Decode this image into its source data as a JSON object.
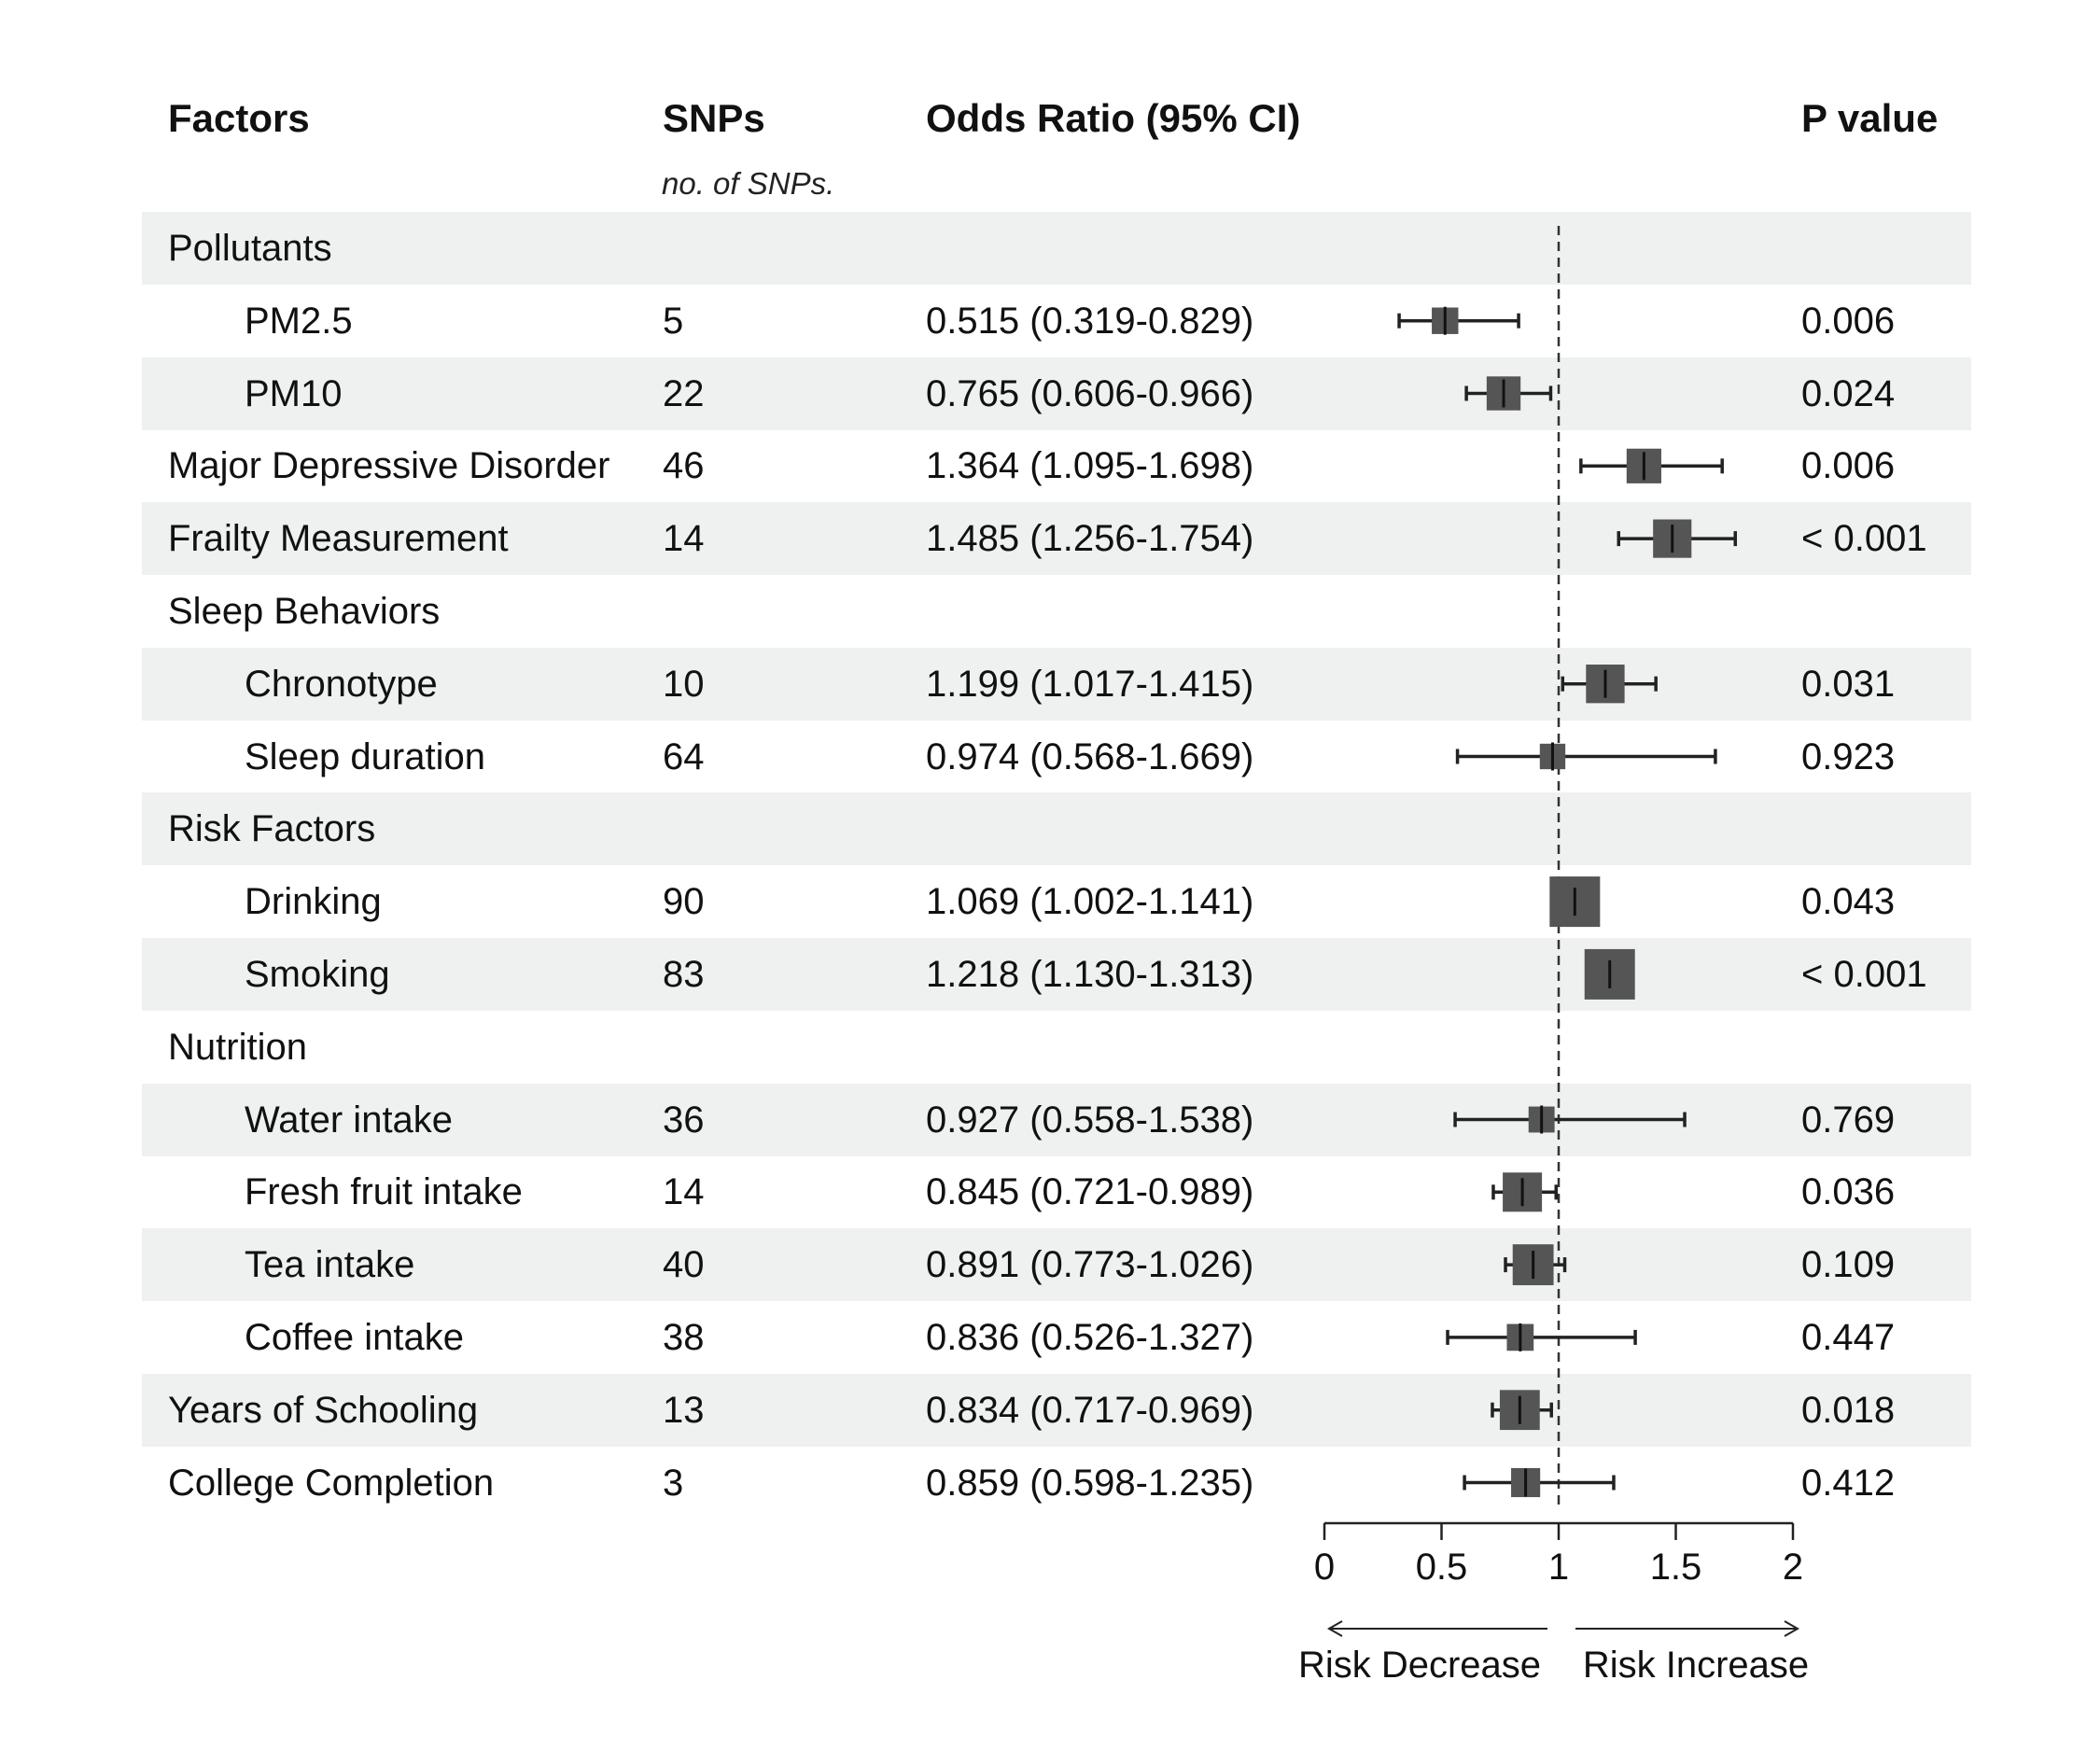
{
  "headers": {
    "factors": "Factors",
    "snps": "SNPs",
    "snps_sub": "no. of SNPs.",
    "odds_ratio": "Odds Ratio (95% CI)",
    "p_value": "P value"
  },
  "rows": [
    {
      "factor": "Pollutants",
      "snps": "",
      "or_text": "",
      "p": "",
      "group": true,
      "indent": false,
      "shaded": true
    },
    {
      "factor": "PM2.5",
      "snps": "5",
      "or_text": "0.515 (0.319-0.829)",
      "p": "0.006",
      "group": false,
      "indent": true,
      "shaded": false
    },
    {
      "factor": "PM10",
      "snps": "22",
      "or_text": "0.765 (0.606-0.966)",
      "p": "0.024",
      "group": false,
      "indent": true,
      "shaded": true
    },
    {
      "factor": "Major Depressive Disorder",
      "snps": "46",
      "or_text": "1.364 (1.095-1.698)",
      "p": "0.006",
      "group": false,
      "indent": false,
      "shaded": false
    },
    {
      "factor": "Frailty Measurement",
      "snps": "14",
      "or_text": "1.485 (1.256-1.754)",
      "p": "< 0.001",
      "group": false,
      "indent": false,
      "shaded": true
    },
    {
      "factor": "Sleep Behaviors",
      "snps": "",
      "or_text": "",
      "p": "",
      "group": true,
      "indent": false,
      "shaded": false
    },
    {
      "factor": "Chronotype",
      "snps": "10",
      "or_text": "1.199 (1.017-1.415)",
      "p": "0.031",
      "group": false,
      "indent": true,
      "shaded": true
    },
    {
      "factor": "Sleep duration",
      "snps": "64",
      "or_text": "0.974 (0.568-1.669)",
      "p": "0.923",
      "group": false,
      "indent": true,
      "shaded": false
    },
    {
      "factor": "Risk Factors",
      "snps": "",
      "or_text": "",
      "p": "",
      "group": true,
      "indent": false,
      "shaded": true
    },
    {
      "factor": "Drinking",
      "snps": "90",
      "or_text": "1.069 (1.002-1.141)",
      "p": "0.043",
      "group": false,
      "indent": true,
      "shaded": false
    },
    {
      "factor": "Smoking",
      "snps": "83",
      "or_text": "1.218 (1.130-1.313)",
      "p": "< 0.001",
      "group": false,
      "indent": true,
      "shaded": true
    },
    {
      "factor": "Nutrition",
      "snps": "",
      "or_text": "",
      "p": "",
      "group": true,
      "indent": false,
      "shaded": false
    },
    {
      "factor": "Water intake",
      "snps": "36",
      "or_text": "0.927 (0.558-1.538)",
      "p": "0.769",
      "group": false,
      "indent": true,
      "shaded": true
    },
    {
      "factor": "Fresh fruit intake",
      "snps": "14",
      "or_text": "0.845 (0.721-0.989)",
      "p": "0.036",
      "group": false,
      "indent": true,
      "shaded": false
    },
    {
      "factor": "Tea intake",
      "snps": "40",
      "or_text": "0.891 (0.773-1.026)",
      "p": "0.109",
      "group": false,
      "indent": true,
      "shaded": true
    },
    {
      "factor": "Coffee intake",
      "snps": "38",
      "or_text": "0.836 (0.526-1.327)",
      "p": "0.447",
      "group": false,
      "indent": true,
      "shaded": false
    },
    {
      "factor": "Years of Schooling",
      "snps": "13",
      "or_text": "0.834 (0.717-0.969)",
      "p": "0.018",
      "group": false,
      "indent": false,
      "shaded": true
    },
    {
      "factor": "College Completion",
      "snps": "3",
      "or_text": "0.859 (0.598-1.235)",
      "p": "0.412",
      "group": false,
      "indent": false,
      "shaded": false
    }
  ],
  "chart_data": {
    "type": "forest",
    "xlim": [
      0,
      2
    ],
    "x_ticks": [
      "0",
      "0.5",
      "1",
      "1.5",
      "2"
    ],
    "reference_line": 1,
    "arrow_left_label": "Risk Decrease",
    "arrow_right_label": "Risk Increase",
    "colors": {
      "box": "#555555",
      "line": "#222222",
      "shade": "#eff1f1"
    },
    "estimates": [
      {
        "label": "PM2.5",
        "or": 0.515,
        "lo": 0.319,
        "hi": 0.829,
        "snps": 5
      },
      {
        "label": "PM10",
        "or": 0.765,
        "lo": 0.606,
        "hi": 0.966,
        "snps": 22
      },
      {
        "label": "Major Depressive Disorder",
        "or": 1.364,
        "lo": 1.095,
        "hi": 1.698,
        "snps": 46
      },
      {
        "label": "Frailty Measurement",
        "or": 1.485,
        "lo": 1.256,
        "hi": 1.754,
        "snps": 14
      },
      {
        "label": "Chronotype",
        "or": 1.199,
        "lo": 1.017,
        "hi": 1.415,
        "snps": 10
      },
      {
        "label": "Sleep duration",
        "or": 0.974,
        "lo": 0.568,
        "hi": 1.669,
        "snps": 64
      },
      {
        "label": "Drinking",
        "or": 1.069,
        "lo": 1.002,
        "hi": 1.141,
        "snps": 90
      },
      {
        "label": "Smoking",
        "or": 1.218,
        "lo": 1.13,
        "hi": 1.313,
        "snps": 83
      },
      {
        "label": "Water intake",
        "or": 0.927,
        "lo": 0.558,
        "hi": 1.538,
        "snps": 36
      },
      {
        "label": "Fresh fruit intake",
        "or": 0.845,
        "lo": 0.721,
        "hi": 0.989,
        "snps": 14
      },
      {
        "label": "Tea intake",
        "or": 0.891,
        "lo": 0.773,
        "hi": 1.026,
        "snps": 40
      },
      {
        "label": "Coffee intake",
        "or": 0.836,
        "lo": 0.526,
        "hi": 1.327,
        "snps": 38
      },
      {
        "label": "Years of Schooling",
        "or": 0.834,
        "lo": 0.717,
        "hi": 0.969,
        "snps": 13
      },
      {
        "label": "College Completion",
        "or": 0.859,
        "lo": 0.598,
        "hi": 1.235,
        "snps": 3
      }
    ]
  }
}
